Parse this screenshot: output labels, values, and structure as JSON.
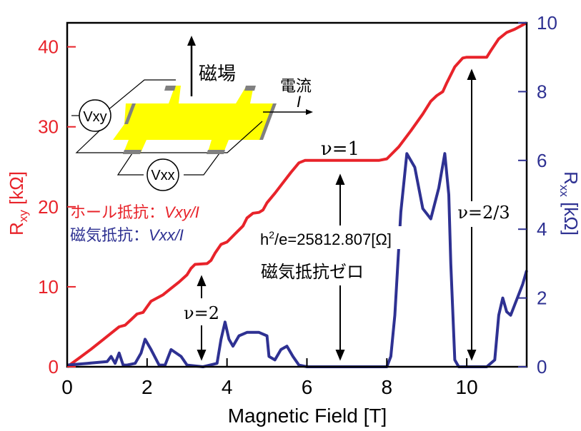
{
  "chart_data": {
    "type": "line",
    "xlabel": "Magnetic Field [T]",
    "xlim": [
      0,
      11.5
    ],
    "x_ticks": [
      0,
      2,
      4,
      6,
      8,
      10
    ],
    "left_axis": {
      "label_main": "R",
      "label_sub": "xy",
      "label_unit": " [kΩ]",
      "ylim": [
        0,
        43
      ],
      "ticks": [
        0,
        10,
        20,
        30,
        40
      ],
      "color": "#e8232a"
    },
    "right_axis": {
      "label_main": "R",
      "label_sub": "xx",
      "label_unit": " [kΩ]",
      "ylim": [
        0,
        10
      ],
      "ticks": [
        0,
        2,
        4,
        6,
        8,
        10
      ],
      "color": "#2e3192"
    },
    "series": [
      {
        "axis": "left",
        "color": "#e8232a",
        "x": [
          0,
          0.3,
          0.6,
          0.9,
          1.1,
          1.3,
          1.45,
          1.6,
          1.75,
          1.9,
          2.0,
          2.1,
          2.25,
          2.4,
          2.6,
          2.8,
          3.0,
          3.1,
          3.2,
          3.5,
          3.6,
          3.7,
          3.85,
          4.0,
          4.2,
          4.4,
          4.5,
          4.65,
          4.8,
          4.9,
          5.0,
          5.2,
          5.4,
          5.6,
          5.8,
          5.95,
          6.0,
          7.0,
          7.8,
          8.0,
          8.3,
          8.6,
          8.9,
          9.1,
          9.25,
          9.4,
          9.5,
          9.7,
          9.9,
          10.0,
          10.5,
          10.6,
          10.8,
          11.0,
          11.2,
          11.5
        ],
        "y": [
          0,
          1.1,
          2.2,
          3.4,
          4.2,
          5.0,
          5.2,
          5.9,
          6.6,
          6.8,
          7.5,
          8.2,
          8.6,
          9.0,
          9.8,
          10.6,
          11.5,
          12.3,
          12.8,
          12.9,
          13.3,
          14.2,
          15.3,
          15.6,
          16.6,
          17.6,
          18.6,
          19.2,
          19.3,
          19.6,
          20.5,
          21.7,
          23.0,
          24.3,
          25.5,
          25.8,
          25.8,
          25.8,
          25.8,
          26.0,
          27.5,
          29.5,
          31.6,
          33.2,
          33.9,
          34.4,
          35.5,
          37.5,
          38.6,
          38.7,
          38.7,
          39.5,
          41.0,
          41.8,
          42.2,
          43.0
        ]
      },
      {
        "axis": "right",
        "color": "#2e3192",
        "x": [
          0,
          0.5,
          1.0,
          1.1,
          1.2,
          1.3,
          1.4,
          1.5,
          1.7,
          1.85,
          1.95,
          2.1,
          2.3,
          2.45,
          2.6,
          2.85,
          3.0,
          3.4,
          3.75,
          3.85,
          3.95,
          4.05,
          4.15,
          4.3,
          4.5,
          4.8,
          5.0,
          5.05,
          5.2,
          5.35,
          5.5,
          5.65,
          5.8,
          6.0,
          7.0,
          8.0,
          8.1,
          8.2,
          8.35,
          8.5,
          8.7,
          8.9,
          9.1,
          9.3,
          9.45,
          9.55,
          9.6,
          9.7,
          9.8,
          9.9,
          10.0,
          10.5,
          10.7,
          10.8,
          10.9,
          11.0,
          11.1,
          11.2,
          11.4,
          11.5
        ],
        "y": [
          0.05,
          0.1,
          0.15,
          0.3,
          0.1,
          0.4,
          0.05,
          0.05,
          0.1,
          0.4,
          0.8,
          0.5,
          0.05,
          0.05,
          0.5,
          0.3,
          0.05,
          0.0,
          0.1,
          0.8,
          1.3,
          0.8,
          0.6,
          0.9,
          1.0,
          1.0,
          0.9,
          0.3,
          0.2,
          0.5,
          0.6,
          0.3,
          0.05,
          0.0,
          0.0,
          0.0,
          0.3,
          1.5,
          4.5,
          6.2,
          5.8,
          4.6,
          4.3,
          5.2,
          6.2,
          5.0,
          3.0,
          0.2,
          0.0,
          0.0,
          0.0,
          0.0,
          0.2,
          1.5,
          2.0,
          1.6,
          1.5,
          1.8,
          2.4,
          2.8
        ]
      }
    ],
    "annotations": {
      "nu2": "ν=2",
      "nu1": "ν=1",
      "nu23": "ν=2/3",
      "hall_const_h": "h",
      "hall_const_sup": "2",
      "hall_const_rest": "/e=25812.807[Ω]",
      "zero_mr": "磁気抵抗ゼロ",
      "legend_hall_label": "ホール抵抗：",
      "legend_hall_formula": "Vxy/I",
      "legend_mr_label": "磁気抵抗：",
      "legend_mr_formula": "Vxx/I"
    },
    "inset": {
      "field_label": "磁場",
      "current_label": "電流",
      "current_symbol": "I",
      "vxy": "Vxy",
      "vxx": "Vxx",
      "colors": {
        "sample": "#ffff00",
        "contact": "#808080"
      }
    }
  }
}
